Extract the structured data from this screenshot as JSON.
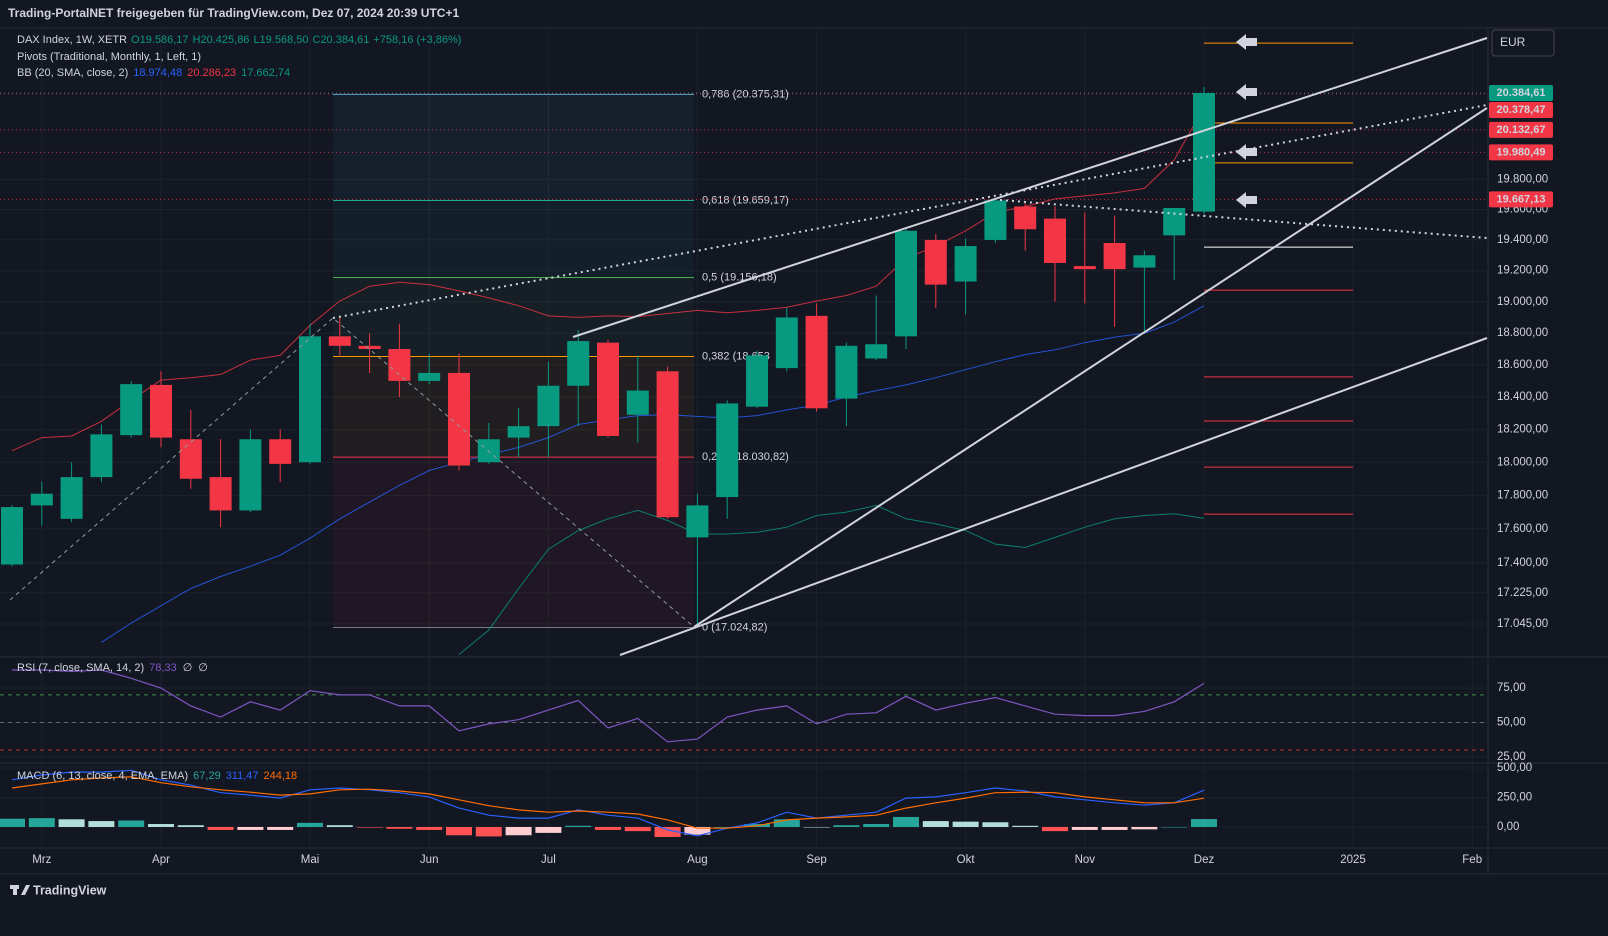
{
  "header": "Trading-PortalNET freigegeben für TradingView.com, Dez 07, 2024 20:39 UTC+1",
  "footer": "TradingView",
  "currency": "EUR",
  "chart_data": [
    {
      "type": "candlestick",
      "symbol": "DAX Index, 1W, XETR",
      "ohlc_labels": [
        "O19.586,17",
        "H20.425,86",
        "L19.568,50",
        "C20.384,61"
      ],
      "change_label": "+758,16 (+3,86%)",
      "pivots_title": "Pivots (Traditional, Monthly, 1, Left, 1)",
      "bb_title": "BB (20, SMA, close, 2)",
      "categories": [
        null,
        "Mrz",
        null,
        null,
        null,
        "Apr",
        null,
        null,
        null,
        null,
        "Mai",
        null,
        null,
        null,
        "Jun",
        null,
        null,
        null,
        "Jul",
        null,
        null,
        null,
        null,
        "Aug",
        null,
        null,
        null,
        "Sep",
        null,
        null,
        null,
        null,
        "Okt",
        null,
        null,
        null,
        "Nov",
        null,
        null,
        null,
        "Dez",
        null,
        null,
        null,
        null,
        "2025",
        null,
        null,
        null,
        "Feb"
      ],
      "open": [
        17390,
        17740,
        17660,
        17910,
        18165,
        18475,
        18140,
        17910,
        17710,
        18140,
        18000,
        18780,
        18720,
        18700,
        18500,
        18550,
        18000,
        18150,
        18220,
        18470,
        18740,
        18290,
        18560,
        17550,
        17790,
        18340,
        18580,
        18910,
        18390,
        18640,
        18780,
        19400,
        19130,
        19400,
        19620,
        19540,
        19230,
        19380,
        19220,
        19430,
        19586.17,
        null,
        null,
        null,
        null,
        null,
        null,
        null,
        null,
        null
      ],
      "high": [
        17740,
        17880,
        18000,
        18230,
        18500,
        18560,
        18320,
        18140,
        18200,
        18200,
        18860,
        18900,
        18800,
        18860,
        18670,
        18670,
        18240,
        18330,
        18620,
        18820,
        18760,
        18660,
        18590,
        17810,
        18380,
        18690,
        18960,
        18990,
        18740,
        19040,
        19480,
        19440,
        19410,
        19670,
        19650,
        19620,
        19580,
        19560,
        19330,
        19610,
        20425.86,
        null,
        null,
        null,
        null,
        null,
        null,
        null,
        null,
        null
      ],
      "low": [
        17380,
        17620,
        17640,
        17880,
        18150,
        18090,
        17840,
        17610,
        17700,
        17880,
        17990,
        18660,
        18550,
        18400,
        18480,
        17950,
        17990,
        18030,
        18030,
        18220,
        18150,
        18120,
        17660,
        17040,
        17660,
        18330,
        18560,
        18310,
        18220,
        18630,
        18700,
        18960,
        18920,
        19380,
        19330,
        19000,
        18990,
        18840,
        18810,
        19140,
        19568.5,
        null,
        null,
        null,
        null,
        null,
        null,
        null,
        null,
        null
      ],
      "close": [
        17730,
        17810,
        17910,
        18170,
        18480,
        18150,
        17900,
        17710,
        18140,
        17990,
        18780,
        18720,
        18700,
        18500,
        18550,
        17980,
        18140,
        18220,
        18470,
        18750,
        18160,
        18440,
        17670,
        17740,
        18360,
        18660,
        18900,
        18330,
        18720,
        18730,
        19460,
        19110,
        19360,
        19660,
        19470,
        19250,
        19210,
        19210,
        19300,
        19610,
        20384.61,
        null,
        null,
        null,
        null,
        null,
        null,
        null,
        null,
        null
      ],
      "colors": {
        "up": "#089981",
        "down": "#f23645"
      },
      "series": [
        {
          "color": "#2962ff",
          "value_label": "18.974,48",
          "values": [
            null,
            null,
            null,
            16940,
            17050,
            17150,
            17250,
            17320,
            17380,
            17445,
            17545,
            17660,
            17760,
            17860,
            17950,
            18000,
            18045,
            18090,
            18150,
            18230,
            18260,
            18285,
            18290,
            18280,
            18270,
            18285,
            18320,
            18350,
            18400,
            18440,
            18475,
            18520,
            18570,
            18620,
            18665,
            18695,
            18740,
            18775,
            18800,
            18870,
            18974.48,
            null,
            null,
            null,
            null,
            null,
            null,
            null,
            null,
            null
          ]
        },
        {
          "color": "#f23645",
          "value_label": "20.286,23",
          "values": [
            18070,
            18150,
            18160,
            18250,
            18380,
            18505,
            18520,
            18540,
            18630,
            18660,
            18850,
            19005,
            19100,
            19125,
            19110,
            19070,
            19025,
            18975,
            18910,
            18900,
            18910,
            18905,
            18925,
            18945,
            18930,
            18945,
            18965,
            19005,
            19040,
            19100,
            19280,
            19360,
            19460,
            19580,
            19620,
            19670,
            19690,
            19710,
            19740,
            19930,
            20286.23,
            null,
            null,
            null,
            null,
            null,
            null,
            null,
            null,
            null
          ]
        },
        {
          "color": "#089981",
          "value_label": "17.662,74",
          "values": [
            null,
            null,
            null,
            null,
            null,
            null,
            null,
            null,
            null,
            null,
            null,
            null,
            null,
            null,
            null,
            16870,
            17010,
            17250,
            17480,
            17590,
            17660,
            17710,
            17650,
            17570,
            17570,
            17580,
            17610,
            17680,
            17700,
            17740,
            17660,
            17630,
            17590,
            17510,
            17490,
            17550,
            17610,
            17660,
            17680,
            17690,
            17662.74,
            null,
            null,
            null,
            null,
            null,
            null,
            null,
            null,
            null
          ]
        }
      ],
      "ylim": [
        16868,
        20822
      ],
      "log": true,
      "grid": true,
      "yticks": [
        {
          "value": 19800,
          "label": "19.800,00"
        },
        {
          "value": 19600,
          "label": "19.600,00"
        },
        {
          "value": 19400,
          "label": "19.400,00"
        },
        {
          "value": 19200,
          "label": "19.200,00"
        },
        {
          "value": 19000,
          "label": "19.000,00"
        },
        {
          "value": 18800,
          "label": "18.800,00"
        },
        {
          "value": 18600,
          "label": "18.600,00"
        },
        {
          "value": 18400,
          "label": "18.400,00"
        },
        {
          "value": 18200,
          "label": "18.200,00"
        },
        {
          "value": 18000,
          "label": "18.000,00"
        },
        {
          "value": 17800,
          "label": "17.800,00"
        },
        {
          "value": 17600,
          "label": "17.600,00"
        },
        {
          "value": 17400,
          "label": "17.400,00"
        },
        {
          "value": 17225,
          "label": "17.225,00"
        },
        {
          "value": 17045,
          "label": "17.045,00"
        }
      ],
      "fib": [
        {
          "label": "0,786 (20.375,31)",
          "value": 20375.31,
          "color": "#4fb3d9"
        },
        {
          "label": "0,618 (19.659,17)",
          "value": 19659.17,
          "color": "#22ab94"
        },
        {
          "label": "0,5 (19.156,18)",
          "value": 19156.18,
          "color": "#4caf50"
        },
        {
          "label": "0,382 (18.653",
          "value": 18653,
          "color": "#ff9800"
        },
        {
          "label": "0,236 (18.030,82)",
          "value": 18030.82,
          "color": "#f23645"
        },
        {
          "label": "0 (17.024,82)",
          "value": 17024.82,
          "color": "#787b86"
        }
      ],
      "pivots": {
        "values": [
          20730,
          20180,
          19910,
          19353,
          19075,
          18525,
          18252,
          17970,
          17688
        ],
        "colors": [
          "#ff9800",
          "#ff9800",
          "#ff9800",
          "#ffffff",
          "#f23645",
          "#f23645",
          "#f23645",
          "#f23645",
          "#f23645"
        ]
      },
      "price_tags": [
        {
          "value": 20384.61,
          "label": "20.384,61",
          "color": "#089981"
        },
        {
          "value": 20378.47,
          "label": "20.378,47",
          "color": "#f23645"
        },
        {
          "value": 20132.67,
          "label": "20.132,67",
          "color": "#f23645"
        },
        {
          "value": 19980.49,
          "label": "19.980,49",
          "color": "#f23645"
        },
        {
          "value": 19667.13,
          "label": "19.667,13",
          "color": "#f23645"
        }
      ]
    },
    {
      "type": "line",
      "title": "RSI (7, close, SMA, 14, 2)",
      "extra_labels": [
        "∅",
        "∅"
      ],
      "series": [
        {
          "color": "#7e57c2",
          "value_label": "78,33",
          "values": [
            88,
            88,
            87,
            88,
            82,
            75,
            62,
            54,
            65,
            59,
            73,
            70,
            70,
            62,
            62,
            44,
            49,
            52,
            59,
            66,
            46,
            53,
            36,
            38,
            54,
            59,
            62,
            49,
            56,
            57,
            69,
            59,
            64,
            68,
            62,
            56,
            55,
            55,
            58,
            65,
            78.33,
            null,
            null,
            null,
            null,
            null,
            null,
            null,
            null,
            null
          ]
        }
      ],
      "levels": [
        {
          "value": 70,
          "color": "#4caf50"
        },
        {
          "value": 50,
          "color": "#787b86"
        },
        {
          "value": 30,
          "color": "#f23645"
        }
      ],
      "ylim": [
        21.4,
        93.8
      ],
      "yticks": [
        {
          "value": 75,
          "label": "75,00"
        },
        {
          "value": 50,
          "label": "50,00"
        },
        {
          "value": 25,
          "label": "25,00"
        }
      ]
    },
    {
      "type": "bar_line",
      "title": "MACD (6, 13, close, 4, EMA, EMA)",
      "series": [
        {
          "type": "bar",
          "colors": [
            "#26a69a",
            "#b2dfdb",
            "#ffcdd2",
            "#ff5252"
          ],
          "color": "#26a69a",
          "value_label": "67,29",
          "values": [
            70,
            75,
            65,
            50,
            55,
            25,
            15,
            -25,
            -25,
            -25,
            35,
            15,
            -5,
            -15,
            -25,
            -70,
            -80,
            -70,
            -50,
            10,
            -25,
            -35,
            -85,
            -65,
            0,
            25,
            65,
            0,
            15,
            25,
            85,
            50,
            45,
            40,
            10,
            -35,
            -25,
            -25,
            -20,
            0,
            67.29,
            null,
            null,
            null,
            null,
            null,
            null,
            null,
            null,
            null
          ]
        },
        {
          "type": "line",
          "color": "#2962ff",
          "value_label": "311,47",
          "values": [
            400,
            440,
            465,
            465,
            480,
            400,
            355,
            290,
            270,
            245,
            315,
            330,
            315,
            290,
            255,
            160,
            100,
            75,
            75,
            145,
            100,
            75,
            -25,
            -75,
            -10,
            35,
            125,
            75,
            100,
            125,
            245,
            255,
            290,
            330,
            305,
            255,
            230,
            205,
            185,
            205,
            311.47,
            null,
            null,
            null,
            null,
            null,
            null,
            null,
            null,
            null
          ]
        },
        {
          "type": "line",
          "color": "#ff6d00",
          "value_label": "244,18",
          "values": [
            330,
            365,
            400,
            415,
            425,
            375,
            340,
            315,
            295,
            270,
            280,
            315,
            320,
            305,
            280,
            230,
            180,
            145,
            125,
            135,
            125,
            110,
            60,
            -10,
            -10,
            10,
            60,
            75,
            85,
            100,
            160,
            205,
            245,
            290,
            295,
            290,
            255,
            230,
            205,
            205,
            244.18,
            null,
            null,
            null,
            null,
            null,
            null,
            null,
            null,
            null
          ]
        }
      ],
      "ylim": [
        -178,
        525
      ],
      "yticks": [
        {
          "value": 500,
          "label": "500,00"
        },
        {
          "value": 250,
          "label": "250,00"
        },
        {
          "value": 0,
          "label": "0,00"
        }
      ]
    }
  ]
}
